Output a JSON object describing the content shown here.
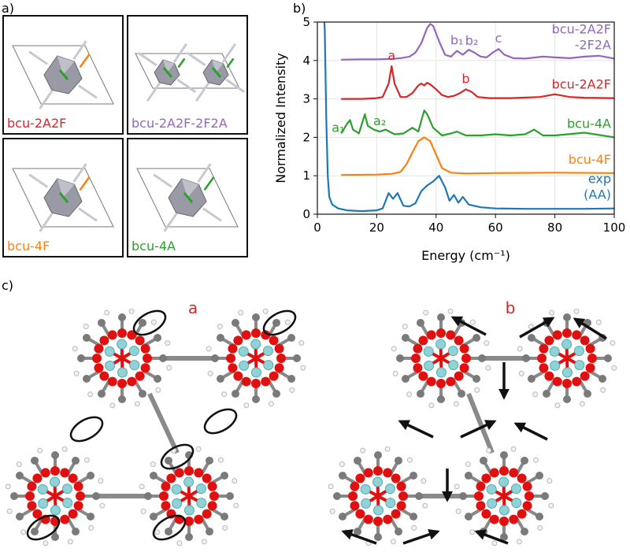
{
  "panel_a": {
    "label": "a)",
    "structures": [
      {
        "name": "bcu-2A2F",
        "color": "#d62728"
      },
      {
        "name": "bcu-2A2F-2F2A",
        "color": "#9467bd"
      },
      {
        "name": "bcu-4F",
        "color": "#ff7f0e"
      },
      {
        "name": "bcu-4A",
        "color": "#2ca02c"
      }
    ]
  },
  "panel_b": {
    "label": "b)"
  },
  "chart_data": {
    "type": "line",
    "xlabel": "Energy (cm⁻¹)",
    "ylabel": "Normalized Intensity",
    "xlim": [
      0,
      100
    ],
    "ylim": [
      0,
      5
    ],
    "xticks": [
      0,
      20,
      40,
      60,
      80,
      100
    ],
    "yticks": [
      0,
      1,
      2,
      3,
      4,
      5
    ],
    "grid": true,
    "series": [
      {
        "name": "bcu-2A2F -2F2A",
        "color": "#9467bd",
        "x": [
          8,
          15,
          20,
          25,
          28,
          31,
          33,
          35,
          37,
          38,
          39,
          41,
          43,
          45,
          47,
          49,
          51,
          53,
          55,
          57,
          59,
          61,
          63,
          66,
          70,
          76,
          80,
          85,
          90,
          95,
          100
        ],
        "values": [
          4.02,
          4.03,
          4.03,
          4.04,
          4.06,
          4.1,
          4.2,
          4.45,
          4.85,
          4.95,
          4.9,
          4.5,
          4.15,
          4.1,
          4.25,
          4.15,
          4.28,
          4.2,
          4.1,
          4.08,
          4.2,
          4.3,
          4.15,
          4.06,
          4.05,
          4.1,
          4.08,
          4.06,
          4.1,
          4.12,
          4.05
        ]
      },
      {
        "name": "bcu-2A2F",
        "color": "#d62728",
        "x": [
          8,
          15,
          20,
          22,
          24,
          25,
          26,
          28,
          30,
          32,
          34,
          35,
          36,
          37,
          38,
          40,
          42,
          44,
          46,
          48,
          50,
          52,
          54,
          58,
          65,
          75,
          80,
          85,
          90,
          100
        ],
        "values": [
          3.0,
          3.0,
          3.02,
          3.05,
          3.4,
          3.85,
          3.4,
          3.05,
          3.05,
          3.15,
          3.35,
          3.4,
          3.35,
          3.42,
          3.38,
          3.25,
          3.1,
          3.05,
          3.08,
          3.15,
          3.25,
          3.18,
          3.05,
          3.02,
          3.02,
          3.05,
          3.12,
          3.05,
          3.03,
          3.02
        ]
      },
      {
        "name": "bcu-4A",
        "color": "#2ca02c",
        "x": [
          8,
          10,
          11,
          12,
          14,
          16,
          17,
          19,
          21,
          23,
          26,
          29,
          32,
          34,
          36,
          37,
          39,
          42,
          45,
          47,
          50,
          55,
          60,
          65,
          70,
          73,
          76,
          80,
          90,
          100
        ],
        "values": [
          2.1,
          2.35,
          2.45,
          2.2,
          2.1,
          2.6,
          2.3,
          2.2,
          2.15,
          2.2,
          2.08,
          2.1,
          2.25,
          2.15,
          2.7,
          2.6,
          2.25,
          2.05,
          2.1,
          2.15,
          2.05,
          2.05,
          2.08,
          2.05,
          2.08,
          2.2,
          2.05,
          2.05,
          2.12,
          2.0
        ]
      },
      {
        "name": "bcu-4F",
        "color": "#ff7f0e",
        "x": [
          8,
          20,
          25,
          28,
          30,
          32,
          34,
          36,
          38,
          40,
          42,
          45,
          50,
          60,
          80,
          100
        ],
        "values": [
          1.02,
          1.03,
          1.05,
          1.1,
          1.3,
          1.6,
          1.9,
          2.0,
          1.9,
          1.55,
          1.2,
          1.08,
          1.06,
          1.07,
          1.08,
          1.07
        ]
      },
      {
        "name": "exp (AA)",
        "color": "#1f77b4",
        "x": [
          2,
          2.5,
          3,
          3.5,
          4,
          5,
          7,
          10,
          15,
          20,
          22,
          24,
          25.5,
          27,
          29,
          31,
          33,
          35,
          37,
          39,
          41,
          43,
          44.5,
          46,
          47.5,
          49,
          51,
          55,
          60,
          70,
          80,
          90,
          100
        ],
        "values": [
          5.5,
          4.8,
          2.5,
          1.0,
          0.45,
          0.25,
          0.15,
          0.1,
          0.08,
          0.1,
          0.15,
          0.55,
          0.4,
          0.55,
          0.22,
          0.2,
          0.28,
          0.6,
          0.75,
          0.85,
          1.0,
          0.7,
          0.35,
          0.5,
          0.3,
          0.45,
          0.25,
          0.18,
          0.15,
          0.14,
          0.14,
          0.14,
          0.15
        ]
      }
    ],
    "annotations": [
      {
        "text": "a",
        "series": 1,
        "x": 25
      },
      {
        "text": "b",
        "series": 1,
        "x": 50
      },
      {
        "text": "a₁",
        "series": 2,
        "x": 7
      },
      {
        "text": "a₂",
        "series": 2,
        "x": 21
      },
      {
        "text": "b₁",
        "series": 0,
        "x": 47
      },
      {
        "text": "b₂",
        "series": 0,
        "x": 52
      },
      {
        "text": "c",
        "series": 0,
        "x": 61
      }
    ]
  },
  "panel_c": {
    "label": "c)",
    "modes": [
      "a",
      "b"
    ]
  }
}
